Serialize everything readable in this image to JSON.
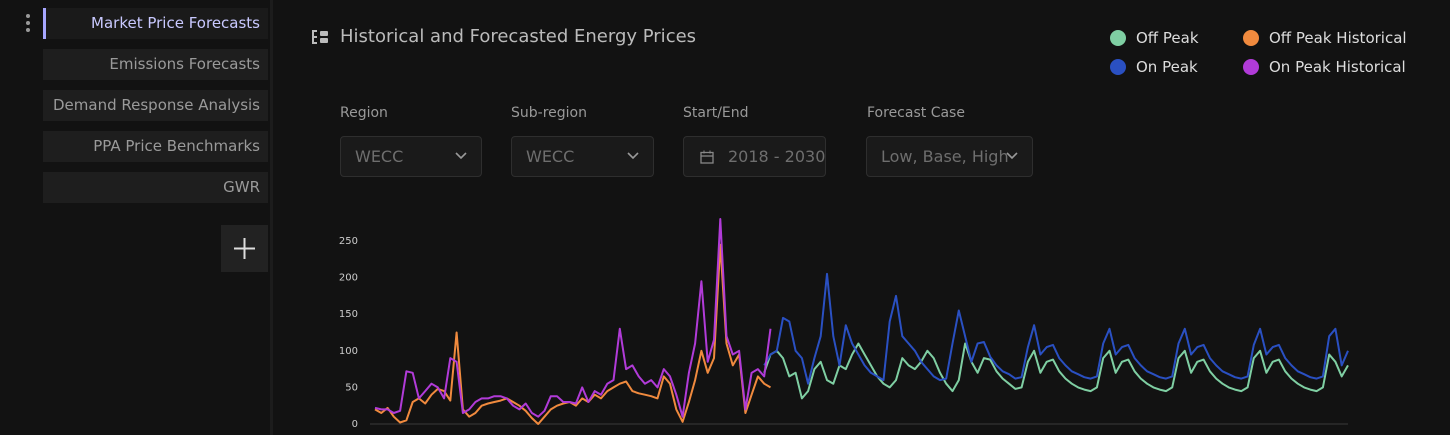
{
  "sidebar": {
    "items": [
      "Market Price Forecasts",
      "Emissions Forecasts",
      "Demand Response Analysis",
      "PPA Price Benchmarks",
      "GWR"
    ]
  },
  "filters": [
    {
      "label": "Region",
      "value": "WECC"
    },
    {
      "label": "Sub-region",
      "value": "WECC"
    },
    {
      "label": "Start/End",
      "value": "2018 - 2030"
    },
    {
      "label": "Forecast Case",
      "value": "Low, Base, High"
    }
  ],
  "chart_data": {
    "type": "line",
    "title": "Historical and Forecasted Energy Prices",
    "ylim": [
      0,
      250
    ],
    "yticks": [
      0,
      50,
      100,
      150,
      200,
      250
    ],
    "series": [
      {
        "name": "Off Peak",
        "color": "#7fcfa3",
        "values": [
          null,
          null,
          null,
          null,
          null,
          null,
          null,
          null,
          null,
          null,
          null,
          null,
          null,
          null,
          null,
          null,
          null,
          null,
          null,
          null,
          null,
          null,
          null,
          null,
          null,
          null,
          null,
          null,
          null,
          null,
          null,
          null,
          null,
          null,
          null,
          null,
          null,
          null,
          null,
          null,
          null,
          null,
          null,
          null,
          null,
          null,
          null,
          null,
          null,
          null,
          null,
          null,
          null,
          null,
          null,
          null,
          null,
          null,
          null,
          null,
          null,
          null,
          70,
          95,
          100,
          90,
          65,
          70,
          35,
          45,
          75,
          85,
          60,
          55,
          80,
          75,
          95,
          110,
          95,
          80,
          65,
          55,
          50,
          60,
          90,
          80,
          75,
          85,
          100,
          90,
          70,
          55,
          45,
          60,
          110,
          85,
          70,
          90,
          88,
          72,
          62,
          55,
          48,
          50,
          85,
          100,
          70,
          85,
          88,
          72,
          62,
          55,
          50,
          47,
          45,
          50,
          90,
          100,
          70,
          85,
          88,
          72,
          62,
          55,
          50,
          47,
          45,
          50,
          90,
          100,
          70,
          85,
          88,
          72,
          62,
          55,
          50,
          47,
          45,
          50,
          90,
          100,
          70,
          85,
          88,
          72,
          62,
          55,
          50,
          47,
          45,
          50,
          95,
          85,
          65,
          80
        ]
      },
      {
        "name": "On Peak",
        "color": "#2a50c2",
        "values": [
          null,
          null,
          null,
          null,
          null,
          null,
          null,
          null,
          null,
          null,
          null,
          null,
          null,
          null,
          null,
          null,
          null,
          null,
          null,
          null,
          null,
          null,
          null,
          null,
          null,
          null,
          null,
          null,
          null,
          null,
          null,
          null,
          null,
          null,
          null,
          null,
          null,
          null,
          null,
          null,
          null,
          null,
          null,
          null,
          null,
          null,
          null,
          null,
          null,
          null,
          null,
          null,
          null,
          null,
          null,
          null,
          null,
          null,
          null,
          null,
          null,
          null,
          80,
          95,
          100,
          145,
          140,
          100,
          90,
          55,
          90,
          120,
          205,
          120,
          80,
          135,
          110,
          95,
          80,
          70,
          65,
          60,
          140,
          175,
          120,
          110,
          100,
          85,
          75,
          65,
          60,
          62,
          110,
          155,
          120,
          85,
          110,
          112,
          92,
          80,
          72,
          68,
          62,
          64,
          105,
          135,
          95,
          105,
          108,
          90,
          80,
          72,
          68,
          64,
          62,
          65,
          110,
          130,
          95,
          105,
          108,
          90,
          80,
          72,
          68,
          64,
          62,
          65,
          110,
          130,
          95,
          105,
          108,
          90,
          80,
          72,
          68,
          64,
          62,
          65,
          108,
          130,
          95,
          105,
          108,
          90,
          80,
          72,
          68,
          64,
          62,
          65,
          120,
          130,
          80,
          100
        ]
      },
      {
        "name": "Off Peak Historical",
        "color": "#f08a3e",
        "values": [
          20,
          15,
          22,
          10,
          2,
          5,
          30,
          35,
          28,
          40,
          48,
          45,
          32,
          125,
          20,
          10,
          15,
          25,
          28,
          30,
          32,
          35,
          30,
          25,
          18,
          8,
          0,
          10,
          20,
          25,
          28,
          30,
          25,
          35,
          30,
          40,
          35,
          45,
          50,
          55,
          58,
          45,
          42,
          40,
          38,
          35,
          65,
          55,
          20,
          3,
          30,
          60,
          100,
          70,
          90,
          245,
          110,
          80,
          95,
          15,
          40,
          65,
          55,
          50,
          null,
          null,
          null,
          null,
          null,
          null,
          null,
          null,
          null,
          null,
          null,
          null,
          null,
          null,
          null,
          null,
          null,
          null,
          null,
          null,
          null,
          null,
          null,
          null,
          null,
          null,
          null,
          null,
          null,
          null,
          null,
          null,
          null,
          null,
          null,
          null,
          null,
          null,
          null,
          null,
          null,
          null,
          null,
          null,
          null,
          null,
          null,
          null,
          null,
          null,
          null,
          null,
          null,
          null,
          null,
          null,
          null,
          null,
          null,
          null,
          null,
          null,
          null,
          null,
          null,
          null,
          null,
          null,
          null,
          null,
          null,
          null,
          null,
          null,
          null,
          null,
          null,
          null,
          null,
          null,
          null,
          null,
          null,
          null,
          null,
          null,
          null,
          null,
          null,
          null,
          null,
          null
        ]
      },
      {
        "name": "On Peak Historical",
        "color": "#b13bd8",
        "values": [
          22,
          20,
          20,
          15,
          18,
          72,
          70,
          35,
          45,
          55,
          50,
          35,
          90,
          85,
          15,
          20,
          30,
          35,
          35,
          38,
          38,
          35,
          25,
          20,
          28,
          15,
          10,
          18,
          38,
          38,
          30,
          30,
          28,
          50,
          30,
          45,
          40,
          55,
          60,
          130,
          75,
          80,
          65,
          55,
          60,
          50,
          75,
          65,
          40,
          10,
          70,
          110,
          195,
          85,
          115,
          280,
          120,
          95,
          100,
          20,
          70,
          75,
          65,
          130,
          null,
          null,
          null,
          null,
          null,
          null,
          null,
          null,
          null,
          null,
          null,
          null,
          null,
          null,
          null,
          null,
          null,
          null,
          null,
          null,
          null,
          null,
          null,
          null,
          null,
          null,
          null,
          null,
          null,
          null,
          null,
          null,
          null,
          null,
          null,
          null,
          null,
          null,
          null,
          null,
          null,
          null,
          null,
          null,
          null,
          null,
          null,
          null,
          null,
          null,
          null,
          null,
          null,
          null,
          null,
          null,
          null,
          null,
          null,
          null,
          null,
          null,
          null,
          null,
          null,
          null,
          null,
          null,
          null,
          null,
          null,
          null,
          null,
          null,
          null,
          null,
          null,
          null,
          null,
          null,
          null,
          null,
          null,
          null,
          null,
          null,
          null,
          null,
          null,
          null,
          null,
          null
        ]
      }
    ]
  }
}
